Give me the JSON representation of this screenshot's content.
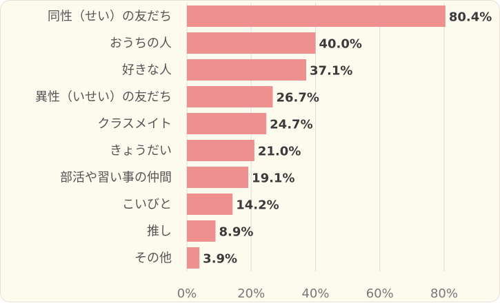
{
  "chart_data": {
    "type": "bar",
    "orientation": "horizontal",
    "categories": [
      "同性（せい）の友だち",
      "おうちの人",
      "好きな人",
      "異性（いせい）の友だち",
      "クラスメイト",
      "きょうだい",
      "部活や習い事の仲間",
      "こいびと",
      "推し",
      "その他"
    ],
    "values": [
      80.4,
      40.0,
      37.1,
      26.7,
      24.7,
      21.0,
      19.1,
      14.2,
      8.9,
      3.9
    ],
    "value_labels": [
      "80.4%",
      "40.0%",
      "37.1%",
      "26.7%",
      "24.7%",
      "21.0%",
      "19.1%",
      "14.2%",
      "8.9%",
      "3.9%"
    ],
    "xlim": [
      0,
      80
    ],
    "xticks": [
      "0%",
      "20%",
      "40%",
      "60%",
      "80%"
    ],
    "grid": true,
    "colors": {
      "bar": "#ee9090",
      "background": "#fdfbee",
      "grid": "#dcdcdc"
    }
  }
}
